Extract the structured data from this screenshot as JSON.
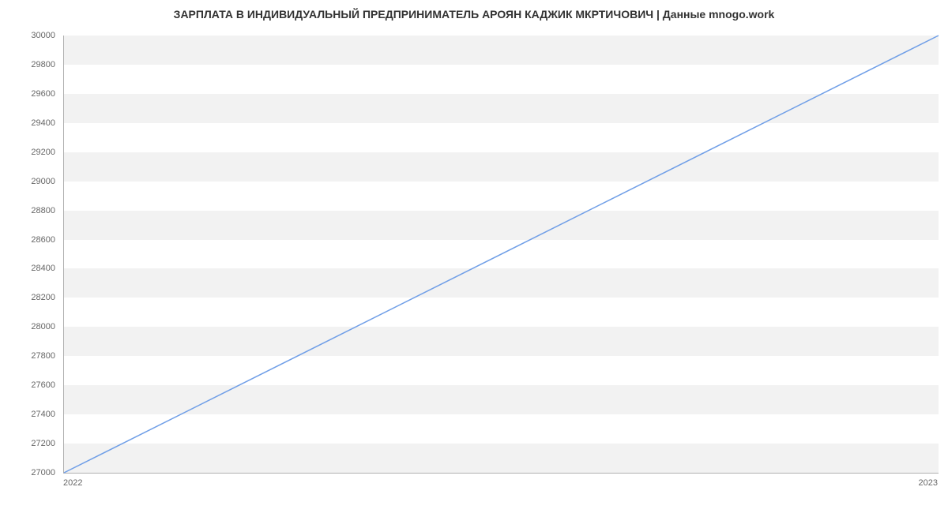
{
  "chart": {
    "type": "line",
    "title": "ЗАРПЛАТА В ИНДИВИДУАЛЬНЫЙ ПРЕДПРИНИМАТЕЛЬ АРОЯН КАДЖИК МКРТИЧОВИЧ | Данные mnogo.work",
    "title_fontsize": 14,
    "title_color": "#323232",
    "background_color": "#ffffff",
    "plot_band_color": "#f2f2f2",
    "axis_color": "#b0b0b0",
    "tick_label_color": "#666666",
    "tick_label_fontsize": 11,
    "line_color": "#6f9ee7",
    "line_width": 1.5,
    "x": {
      "categories": [
        "2022",
        "2023"
      ]
    },
    "y": {
      "min": 27000,
      "max": 30000,
      "tick_step": 200,
      "ticks": [
        27000,
        27200,
        27400,
        27600,
        27800,
        28000,
        28200,
        28400,
        28600,
        28800,
        29000,
        29200,
        29400,
        29600,
        29800,
        30000
      ]
    },
    "series": [
      {
        "x": "2022",
        "y": 27000
      },
      {
        "x": "2023",
        "y": 30000
      }
    ]
  }
}
